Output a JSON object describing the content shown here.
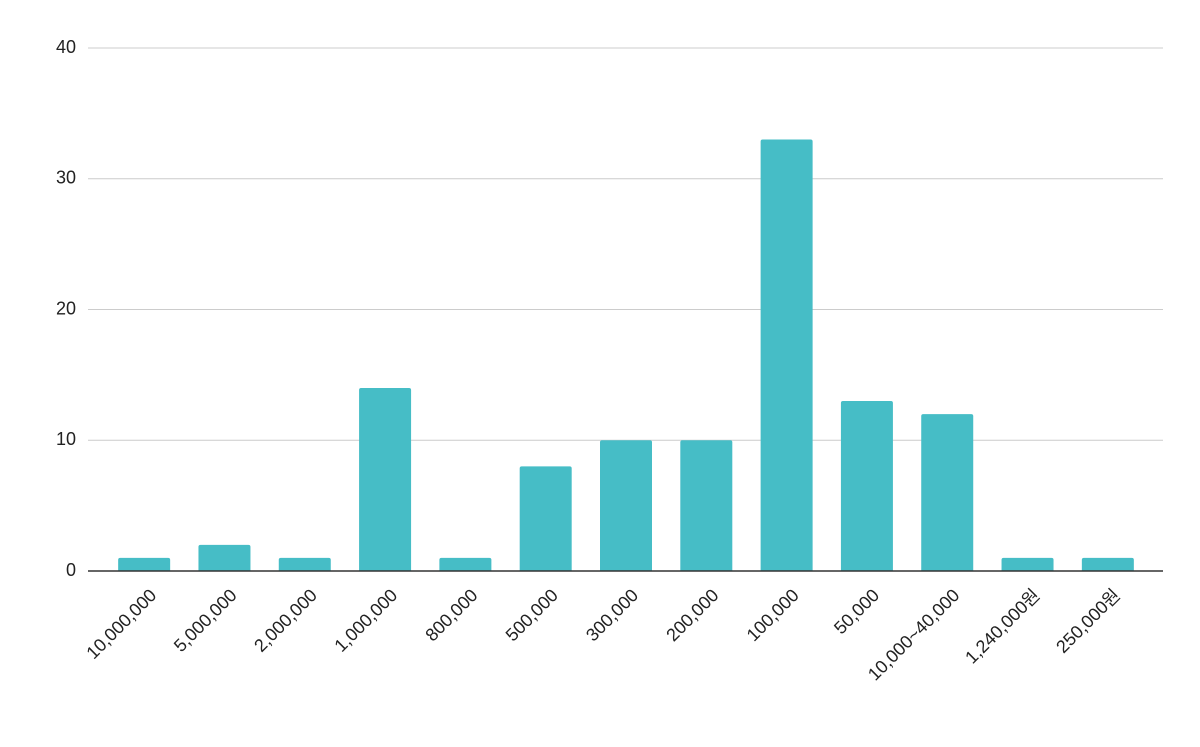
{
  "chart_data": {
    "type": "bar",
    "categories": [
      "10,000,000",
      "5,000,000",
      "2,000,000",
      "1,000,000",
      "800,000",
      "500,000",
      "300,000",
      "200,000",
      "100,000",
      "50,000",
      "10,000~40,000",
      "1,240,000원",
      "250,000원"
    ],
    "values": [
      1,
      2,
      1,
      14,
      1,
      8,
      10,
      10,
      33,
      13,
      12,
      1,
      1
    ],
    "color": "#46bdc6",
    "ylim": [
      0,
      40
    ],
    "yticks": [
      0,
      10,
      20,
      30,
      40
    ],
    "grid": true
  }
}
